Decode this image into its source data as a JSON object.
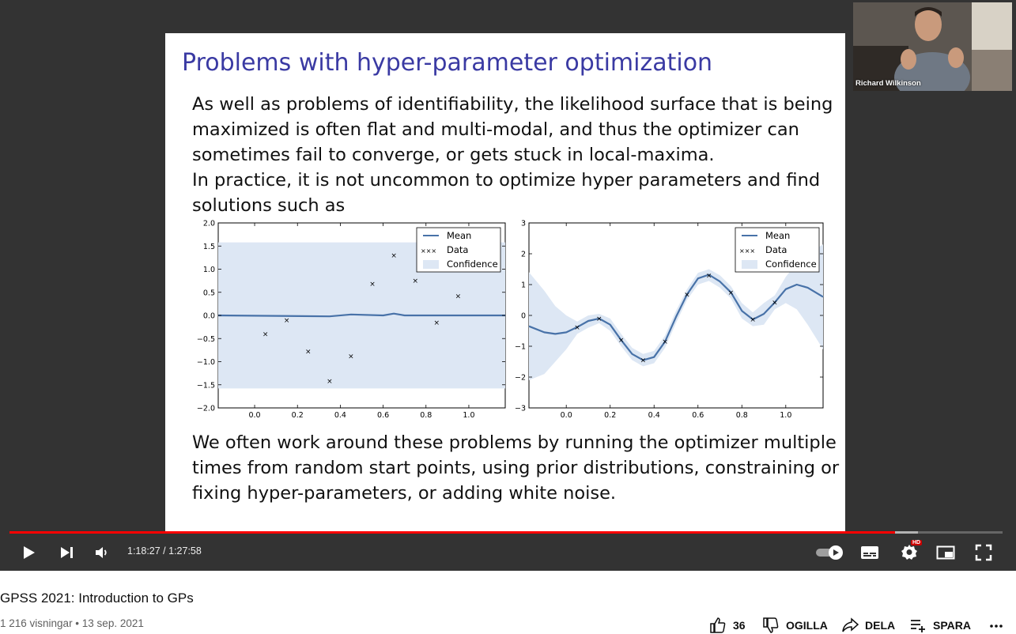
{
  "slide": {
    "title": "Problems with hyper-parameter optimization",
    "para1": [
      "As well as problems of identifiability, the likelihood surface that is being",
      "maximized is often flat and multi-modal, and thus the optimizer can",
      "sometimes fail to converge, or gets stuck in local-maxima.",
      "In practice, it is not uncommon to optimize hyper parameters and find",
      "solutions such as"
    ],
    "para2": [
      "We often work around these problems by running the optimizer multiple",
      "times from random start points, using prior distributions, constraining or",
      "fixing hyper-parameters, or adding white noise."
    ]
  },
  "chart_data": [
    {
      "type": "line",
      "ylim": [
        -2.0,
        2.0
      ],
      "xlim": [
        -0.17,
        1.17
      ],
      "xticks": [
        "0.0",
        "0.2",
        "0.4",
        "0.6",
        "0.8",
        "1.0"
      ],
      "yticks": [
        "2.0",
        "1.5",
        "1.0",
        "0.5",
        "0.0",
        "−0.5",
        "−1.0",
        "−1.5",
        "−2.0"
      ],
      "legend": [
        "Mean",
        "Data",
        "Confidence"
      ],
      "legend_position": "top-right",
      "series": [
        {
          "name": "Mean",
          "x": [
            -0.17,
            0.35,
            0.45,
            0.6,
            0.65,
            0.7,
            1.17
          ],
          "y": [
            0.0,
            -0.02,
            0.02,
            0.0,
            0.04,
            0.0,
            0.0
          ]
        },
        {
          "name": "Data",
          "x": [
            0.05,
            0.15,
            0.25,
            0.35,
            0.45,
            0.55,
            0.65,
            0.75,
            0.85,
            0.95
          ],
          "y": [
            -0.4,
            -0.1,
            -0.78,
            -1.42,
            -0.88,
            0.68,
            1.3,
            0.75,
            -0.15,
            0.42
          ]
        }
      ],
      "confidence": [
        -1.58,
        1.58
      ]
    },
    {
      "type": "line",
      "ylim": [
        -3,
        3
      ],
      "xlim": [
        -0.17,
        1.17
      ],
      "xticks": [
        "0.0",
        "0.2",
        "0.4",
        "0.6",
        "0.8",
        "1.0"
      ],
      "yticks": [
        "3",
        "2",
        "1",
        "0",
        "−1",
        "−2",
        "−3"
      ],
      "legend": [
        "Mean",
        "Data",
        "Confidence"
      ],
      "legend_position": "top-right",
      "series": [
        {
          "name": "Mean",
          "x": [
            -0.17,
            -0.1,
            -0.05,
            0.0,
            0.05,
            0.1,
            0.15,
            0.2,
            0.25,
            0.3,
            0.35,
            0.4,
            0.45,
            0.5,
            0.55,
            0.6,
            0.65,
            0.7,
            0.75,
            0.8,
            0.85,
            0.9,
            0.95,
            1.0,
            1.05,
            1.1,
            1.17
          ],
          "y": [
            -0.35,
            -0.55,
            -0.6,
            -0.55,
            -0.38,
            -0.18,
            -0.1,
            -0.3,
            -0.8,
            -1.25,
            -1.45,
            -1.35,
            -0.85,
            -0.05,
            0.68,
            1.2,
            1.32,
            1.1,
            0.75,
            0.15,
            -0.13,
            0.05,
            0.42,
            0.85,
            1.0,
            0.9,
            0.6
          ]
        },
        {
          "name": "Data",
          "x": [
            0.05,
            0.15,
            0.25,
            0.35,
            0.45,
            0.55,
            0.65,
            0.75,
            0.85,
            0.95
          ],
          "y": [
            -0.38,
            -0.1,
            -0.8,
            -1.45,
            -0.85,
            0.68,
            1.3,
            0.75,
            -0.13,
            0.42
          ]
        }
      ],
      "confidence_upper": [
        1.4,
        0.8,
        0.3,
        0.0,
        -0.2,
        0.0,
        0.05,
        -0.1,
        -0.6,
        -1.05,
        -1.25,
        -1.15,
        -0.65,
        0.15,
        0.85,
        1.38,
        1.5,
        1.3,
        0.95,
        0.4,
        0.1,
        0.4,
        0.65,
        1.25,
        1.7,
        2.0,
        2.3
      ],
      "confidence_lower": [
        -2.1,
        -1.9,
        -1.5,
        -1.1,
        -0.6,
        -0.4,
        -0.25,
        -0.5,
        -1.0,
        -1.45,
        -1.65,
        -1.55,
        -1.05,
        -0.25,
        0.5,
        1.0,
        1.12,
        0.9,
        0.55,
        -0.1,
        -0.35,
        -0.3,
        0.2,
        0.4,
        0.2,
        -0.3,
        -1.1
      ]
    }
  ],
  "webcam": {
    "name": "Richard Wilkinson"
  },
  "player": {
    "time": "1:18:27 / 1:27:58",
    "progress": 0.8918,
    "buffered": 0.915,
    "hd_badge": "HD",
    "accent": "#ff0000"
  },
  "video": {
    "title": "GPSS 2021: Introduction to GPs",
    "meta": "1 216 visningar • 13 sep. 2021",
    "likes": "36",
    "dislike_label": "OGILLA",
    "share_label": "DELA",
    "save_label": "SPARA"
  },
  "icons": [
    "play-icon",
    "next-icon",
    "volume-icon",
    "autoplay-toggle-icon",
    "subtitles-icon",
    "settings-icon",
    "miniplayer-icon",
    "fullscreen-icon",
    "thumbs-up-icon",
    "thumbs-down-icon",
    "share-icon",
    "save-playlist-icon",
    "more-icon"
  ]
}
